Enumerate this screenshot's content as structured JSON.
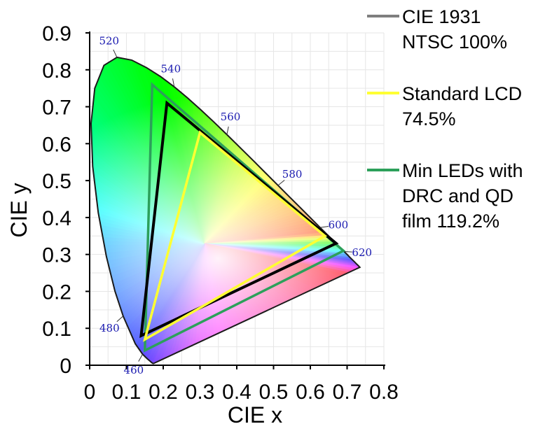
{
  "chart_data": {
    "type": "scatter",
    "title": "",
    "xlabel": "CIE x",
    "ylabel": "CIE y",
    "xlim": [
      0,
      0.8
    ],
    "ylim": [
      0,
      0.9
    ],
    "x_ticks": [
      "0",
      "0.1",
      "0.2",
      "0.3",
      "0.4",
      "0.5",
      "0.6",
      "0.7",
      "0.8"
    ],
    "y_ticks": [
      "0",
      "0.1",
      "0.2",
      "0.3",
      "0.4",
      "0.5",
      "0.6",
      "0.7",
      "0.8",
      "0.9"
    ],
    "grid": false,
    "legend_position": "right",
    "spectral_locus_labels": [
      {
        "label": "460",
        "x": 0.144,
        "y": 0.03
      },
      {
        "label": "480",
        "x": 0.091,
        "y": 0.133
      },
      {
        "label": "520",
        "x": 0.074,
        "y": 0.834
      },
      {
        "label": "540",
        "x": 0.23,
        "y": 0.754
      },
      {
        "label": "560",
        "x": 0.373,
        "y": 0.624
      },
      {
        "label": "580",
        "x": 0.512,
        "y": 0.487
      },
      {
        "label": "600",
        "x": 0.627,
        "y": 0.373
      },
      {
        "label": "620",
        "x": 0.691,
        "y": 0.308
      }
    ],
    "series": [
      {
        "name": "CIE 1931\nNTSC 100%",
        "color": "#7f7f7f",
        "x": [
          0.67,
          0.21,
          0.14
        ],
        "y": [
          0.33,
          0.71,
          0.08
        ]
      },
      {
        "name": "Standard LCD\n74.5%",
        "color": "#ffff33",
        "x": [
          0.64,
          0.3,
          0.15
        ],
        "y": [
          0.35,
          0.63,
          0.07
        ]
      },
      {
        "name": "Min LEDs with\nDRC and QD\nfilm 119.2%",
        "color": "#2ca05a",
        "x": [
          0.69,
          0.17,
          0.15
        ],
        "y": [
          0.31,
          0.76,
          0.04
        ]
      }
    ]
  }
}
